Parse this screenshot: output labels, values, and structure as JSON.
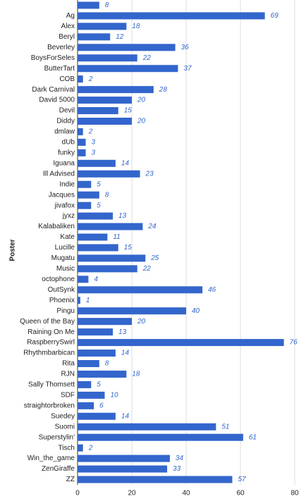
{
  "chart_data": {
    "type": "bar",
    "orientation": "horizontal",
    "y_label": "Poster",
    "categories": [
      null,
      "Ag",
      "Alex",
      "Beryl",
      "Beverley",
      "BoysForSeles",
      "ButterTart",
      "COB",
      "Dark Carnival",
      "David 5000",
      "Devil",
      "Diddy",
      "dmlaw",
      "dUb",
      "funky",
      "Iguana",
      "Ill Advised",
      "Indie",
      "Jacques",
      "jivafox",
      "jyxz",
      "Kalabaliken",
      "Kate",
      "Lucille",
      "Mugatu",
      "Music",
      "octophone",
      "OutSynk",
      "Phoenix",
      "Pingu",
      "Queen of the Bay",
      "Raining On Me",
      "RaspberrySwirl",
      "Rhythmbarbican",
      "Rita",
      "RJN",
      "Sally Thomsett",
      "SDF",
      "straightorbroken",
      "Suedey",
      "Suomi",
      "Superstylin'",
      "Tisch",
      "Win_the_game",
      "ZenGiraffe",
      "ZZ"
    ],
    "values": [
      8,
      69,
      18,
      12,
      36,
      22,
      37,
      2,
      28,
      20,
      15,
      20,
      2,
      3,
      3,
      14,
      23,
      5,
      8,
      5,
      13,
      24,
      11,
      15,
      25,
      22,
      4,
      46,
      1,
      40,
      20,
      13,
      76,
      14,
      8,
      18,
      5,
      10,
      6,
      14,
      51,
      61,
      2,
      34,
      33,
      57
    ],
    "color": "#3366cc",
    "xlim": [
      0,
      80
    ],
    "xticks": [
      0,
      20,
      40,
      60,
      80
    ],
    "grid": true
  }
}
